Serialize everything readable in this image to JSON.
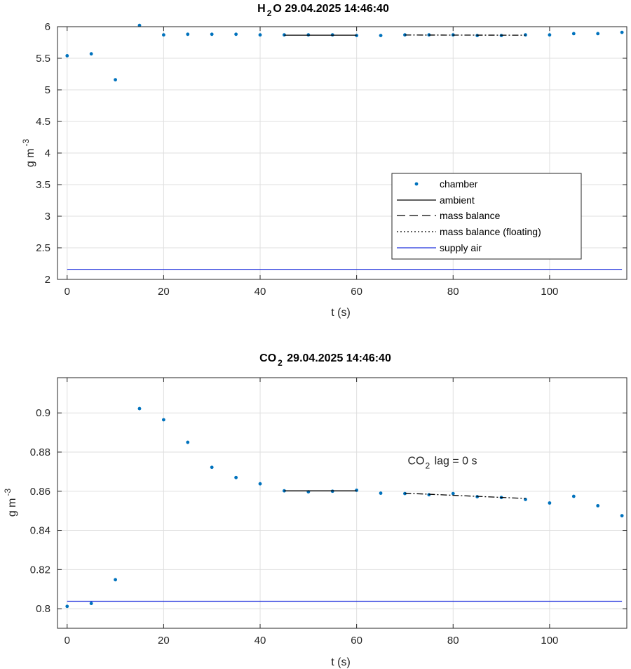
{
  "chart_data": [
    {
      "type": "scatter",
      "title_main": "H",
      "title_sub": "2",
      "title_rest": "O  29.04.2025 14:46:40",
      "xlabel": "t (s)",
      "ylabel_main": "g m",
      "ylabel_sup": "-3",
      "xlim": [
        -2,
        116
      ],
      "ylim": [
        2,
        6
      ],
      "xticks": [
        0,
        20,
        40,
        60,
        80,
        100
      ],
      "xtick_labels": [
        "0",
        "20",
        "40",
        "60",
        "80",
        "100"
      ],
      "yticks": [
        2,
        2.5,
        3,
        3.5,
        4,
        4.5,
        5,
        5.5,
        6
      ],
      "ytick_labels": [
        "2",
        "2.5",
        "3",
        "3.5",
        "4",
        "4.5",
        "5",
        "5.5",
        "6"
      ],
      "grid": true,
      "legend_position": "center-right",
      "series": [
        {
          "name": "chamber",
          "style": "dots",
          "color": "#0072BD",
          "x": [
            0,
            5,
            10,
            15,
            20,
            25,
            30,
            35,
            40,
            45,
            50,
            55,
            60,
            65,
            70,
            75,
            80,
            85,
            90,
            95,
            100,
            105,
            110,
            115
          ],
          "y": [
            5.54,
            5.57,
            5.16,
            6.02,
            5.87,
            5.88,
            5.88,
            5.88,
            5.87,
            5.87,
            5.87,
            5.87,
            5.86,
            5.86,
            5.87,
            5.87,
            5.87,
            5.86,
            5.86,
            5.87,
            5.87,
            5.89,
            5.89,
            5.91
          ]
        },
        {
          "name": "ambient",
          "style": "solid",
          "color": "#000000",
          "x": [
            45,
            60
          ],
          "y": [
            5.865,
            5.865
          ]
        },
        {
          "name": "mass balance",
          "style": "dashdot",
          "color": "#000000",
          "x": [
            70,
            95
          ],
          "y": [
            5.868,
            5.865
          ]
        },
        {
          "name": "mass balance (floating)",
          "style": "dotted",
          "color": "#000000",
          "x": [],
          "y": []
        },
        {
          "name": "supply air",
          "style": "solid",
          "color": "#2233DD",
          "x": [
            0,
            115
          ],
          "y": [
            2.16,
            2.16
          ]
        }
      ]
    },
    {
      "type": "scatter",
      "title_main": "CO",
      "title_sub": "2",
      "title_rest": "  29.04.2025 14:46:40",
      "xlabel": "t (s)",
      "ylabel_main": "g m",
      "ylabel_sup": "-3",
      "xlim": [
        -2,
        116
      ],
      "ylim": [
        0.79,
        0.918
      ],
      "xticks": [
        0,
        20,
        40,
        60,
        80,
        100
      ],
      "xtick_labels": [
        "0",
        "20",
        "40",
        "60",
        "80",
        "100"
      ],
      "yticks": [
        0.8,
        0.82,
        0.84,
        0.86,
        0.88,
        0.9
      ],
      "ytick_labels": [
        "0.8",
        "0.82",
        "0.84",
        "0.86",
        "0.88",
        "0.9"
      ],
      "grid": true,
      "annotation_main": "CO",
      "annotation_sub": "2",
      "annotation_rest": " lag = 0 s",
      "annotation_x": 70,
      "annotation_y": 0.8755,
      "series": [
        {
          "name": "chamber",
          "style": "dots",
          "color": "#0072BD",
          "x": [
            0,
            5,
            10,
            15,
            20,
            25,
            30,
            35,
            40,
            45,
            50,
            55,
            60,
            65,
            70,
            75,
            80,
            85,
            90,
            95,
            100,
            105,
            110,
            115
          ],
          "y": [
            0.8012,
            0.8027,
            0.8148,
            0.9022,
            0.8965,
            0.885,
            0.8722,
            0.867,
            0.8638,
            0.8602,
            0.8597,
            0.86,
            0.8605,
            0.859,
            0.8588,
            0.8582,
            0.8588,
            0.8572,
            0.8568,
            0.8558,
            0.854,
            0.8574,
            0.8526,
            0.8475
          ]
        },
        {
          "name": "ambient",
          "style": "solid",
          "color": "#000000",
          "x": [
            45,
            60
          ],
          "y": [
            0.8602,
            0.8602
          ]
        },
        {
          "name": "mass balance",
          "style": "dashdot",
          "color": "#000000",
          "x": [
            70,
            95
          ],
          "y": [
            0.859,
            0.8563
          ]
        },
        {
          "name": "supply air",
          "style": "solid",
          "color": "#2233DD",
          "x": [
            0,
            115
          ],
          "y": [
            0.8038,
            0.8038
          ]
        }
      ]
    }
  ]
}
